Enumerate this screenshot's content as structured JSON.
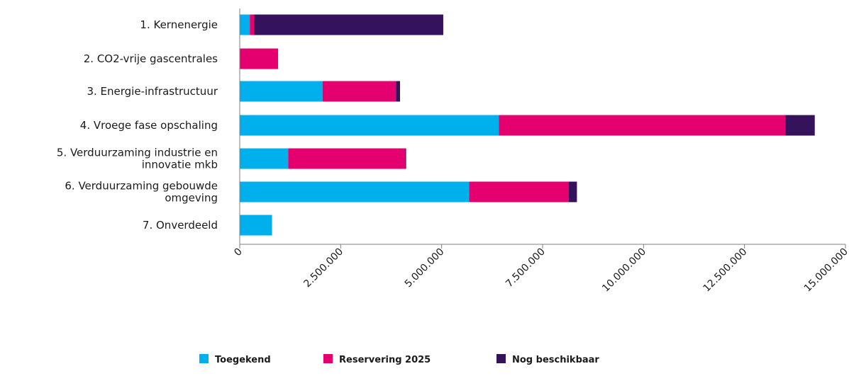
{
  "chart_data": {
    "type": "bar",
    "orientation": "horizontal",
    "stacked": true,
    "title": "",
    "xlabel": "",
    "ylabel": "",
    "xlim": [
      0,
      15000000
    ],
    "grid": false,
    "legend_position": "bottom",
    "categories": [
      [
        "1. Kernenergie"
      ],
      [
        "2. CO2-vrije gascentrales"
      ],
      [
        "3. Energie-infrastructuur"
      ],
      [
        "4. Vroege fase opschaling"
      ],
      [
        "5. Verduurzaming industrie en",
        "innovatie mkb"
      ],
      [
        "6. Verduurzaming gebouwde",
        "omgeving"
      ],
      [
        "7. Onverdeeld"
      ]
    ],
    "series": [
      {
        "name": "Toegekend",
        "color": "#00b0ec",
        "values": [
          250000,
          0,
          2050000,
          6420000,
          1200000,
          5680000,
          800000
        ]
      },
      {
        "name": "Reservering 2025",
        "color": "#e4006f",
        "values": [
          110000,
          950000,
          1820000,
          7090000,
          2900000,
          2470000,
          0
        ]
      },
      {
        "name": "Nog beschikbaar",
        "color": "#35135c",
        "values": [
          4680000,
          0,
          100000,
          730000,
          20000,
          200000,
          0
        ]
      }
    ],
    "x_ticks": [
      {
        "value": 0,
        "label": "0"
      },
      {
        "value": 2500000,
        "label": "2.500.000"
      },
      {
        "value": 5000000,
        "label": "5.000.000"
      },
      {
        "value": 7500000,
        "label": "7.500.000"
      },
      {
        "value": 10000000,
        "label": "10.000.000"
      },
      {
        "value": 12500000,
        "label": "12.500.000"
      },
      {
        "value": 15000000,
        "label": "15.000.000"
      }
    ]
  }
}
